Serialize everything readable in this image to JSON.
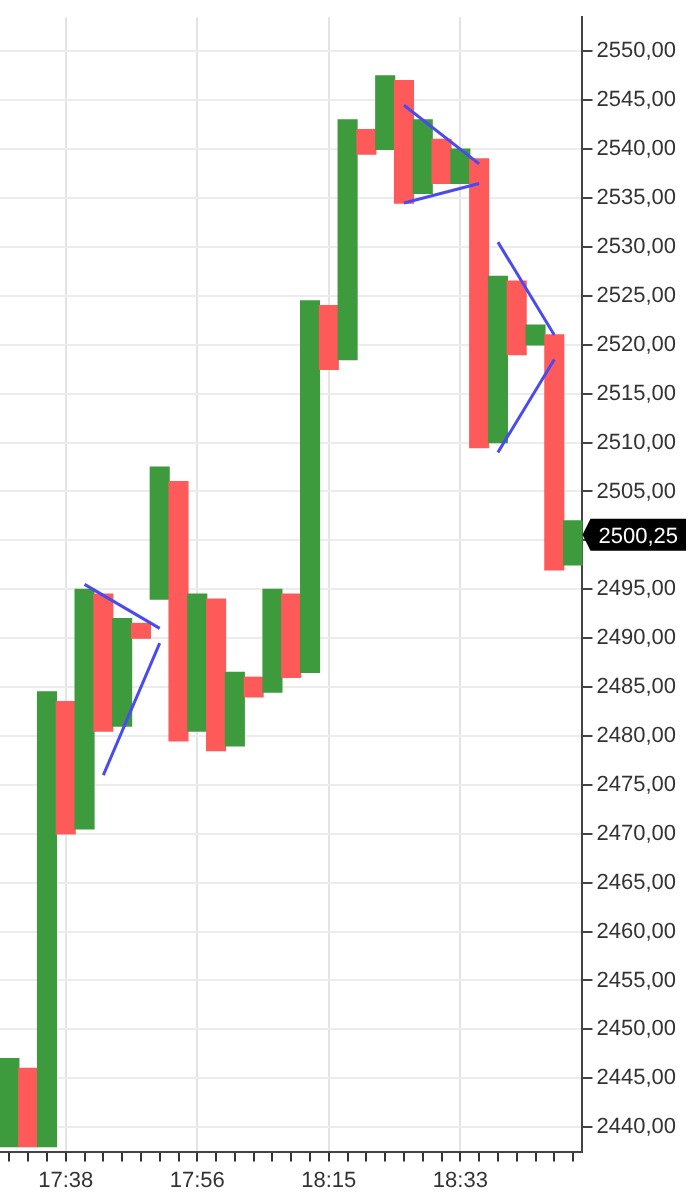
{
  "chart_data": {
    "type": "bar",
    "categories": [
      null,
      null,
      null,
      "17:38",
      null,
      null,
      null,
      null,
      null,
      null,
      "17:56",
      null,
      null,
      null,
      null,
      null,
      null,
      "18:15",
      null,
      null,
      null,
      null,
      null,
      null,
      "18:33",
      null,
      null,
      null,
      null,
      null,
      null
    ],
    "series": [
      {
        "base": [
          2438,
          2438,
          2438,
          2470,
          2470.5,
          2480.5,
          2481,
          2490,
          2494,
          2479.5,
          2480.5,
          2478.5,
          2479,
          2484,
          2484.5,
          2486,
          2486.5,
          2517.5,
          2518.5,
          2539.5,
          2540,
          2534.5,
          2535.5,
          2536.5,
          2536.5,
          2509.5,
          2510,
          2519,
          2520,
          2497,
          2497.5
        ],
        "values": [
          9,
          8,
          46.5,
          13.5,
          24.5,
          14,
          11,
          1.5,
          13.5,
          26.5,
          14,
          15.5,
          7.5,
          2,
          10.5,
          8.5,
          38,
          6.5,
          24.5,
          2.5,
          7.5,
          12.5,
          7.5,
          4.5,
          3.5,
          29.5,
          17,
          7.5,
          2,
          24,
          4.5
        ],
        "colors": [
          "#3d9a3d",
          "#ff5a5a",
          "#3d9a3d",
          "#ff5a5a",
          "#3d9a3d",
          "#ff5a5a",
          "#3d9a3d",
          "#ff5a5a",
          "#3d9a3d",
          "#ff5a5a",
          "#3d9a3d",
          "#ff5a5a",
          "#3d9a3d",
          "#ff5a5a",
          "#3d9a3d",
          "#ff5a5a",
          "#3d9a3d",
          "#ff5a5a",
          "#3d9a3d",
          "#ff5a5a",
          "#3d9a3d",
          "#ff5a5a",
          "#3d9a3d",
          "#ff5a5a",
          "#3d9a3d",
          "#ff5a5a",
          "#3d9a3d",
          "#ff5a5a",
          "#3d9a3d",
          "#ff5a5a",
          "#3d9a3d"
        ]
      },
      {
        "type": "line",
        "color": "#4a4af0",
        "values": [
          null,
          null,
          null,
          null,
          2495.5,
          null,
          null,
          null,
          2491,
          null,
          null,
          null,
          null,
          null,
          null,
          null,
          null,
          null,
          null,
          null,
          null,
          null,
          null,
          null,
          null,
          null,
          null,
          null,
          null,
          null,
          null
        ]
      },
      {
        "type": "line",
        "color": "#4a4af0",
        "values": [
          null,
          null,
          null,
          null,
          null,
          2476,
          null,
          null,
          2489.5,
          null,
          null,
          null,
          null,
          null,
          null,
          null,
          null,
          null,
          null,
          null,
          null,
          null,
          null,
          null,
          null,
          null,
          null,
          null,
          null,
          null,
          null
        ]
      },
      {
        "type": "line",
        "color": "#4a4af0",
        "values": [
          null,
          null,
          null,
          null,
          null,
          null,
          null,
          null,
          null,
          null,
          null,
          null,
          null,
          null,
          null,
          null,
          null,
          null,
          null,
          null,
          null,
          2544.5,
          null,
          null,
          null,
          2538.5,
          null,
          null,
          null,
          null,
          null
        ]
      },
      {
        "type": "line",
        "color": "#4a4af0",
        "values": [
          null,
          null,
          null,
          null,
          null,
          null,
          null,
          null,
          null,
          null,
          null,
          null,
          null,
          null,
          null,
          null,
          null,
          null,
          null,
          null,
          null,
          2534.5,
          null,
          null,
          null,
          2536.5,
          null,
          null,
          null,
          null,
          null
        ]
      },
      {
        "type": "line",
        "color": "#4a4af0",
        "values": [
          null,
          null,
          null,
          null,
          null,
          null,
          null,
          null,
          null,
          null,
          null,
          null,
          null,
          null,
          null,
          null,
          null,
          null,
          null,
          null,
          null,
          null,
          null,
          null,
          null,
          null,
          2530.5,
          null,
          null,
          2521,
          null
        ]
      },
      {
        "type": "line",
        "color": "#4a4af0",
        "values": [
          null,
          null,
          null,
          null,
          null,
          null,
          null,
          null,
          null,
          null,
          null,
          null,
          null,
          null,
          null,
          null,
          null,
          null,
          null,
          null,
          null,
          null,
          null,
          null,
          null,
          null,
          2509,
          null,
          null,
          2518.5,
          null
        ]
      }
    ],
    "ylim": [
      2437.5,
      2553.5
    ],
    "yticks": [
      {
        "value": 2440,
        "label": "2440,00"
      },
      {
        "value": 2445,
        "label": "2445,00"
      },
      {
        "value": 2450,
        "label": "2450,00"
      },
      {
        "value": 2455,
        "label": "2455,00"
      },
      {
        "value": 2460,
        "label": "2460,00"
      },
      {
        "value": 2465,
        "label": "2465,00"
      },
      {
        "value": 2470,
        "label": "2470,00"
      },
      {
        "value": 2475,
        "label": "2475,00"
      },
      {
        "value": 2480,
        "label": "2480,00"
      },
      {
        "value": 2485,
        "label": "2485,00"
      },
      {
        "value": 2490,
        "label": "2490,00"
      },
      {
        "value": 2495,
        "label": "2495,00"
      },
      {
        "value": 2500,
        "label": null
      },
      {
        "value": 2505,
        "label": "2505,00"
      },
      {
        "value": 2510,
        "label": "2510,00"
      },
      {
        "value": 2515,
        "label": "2515,00"
      },
      {
        "value": 2520,
        "label": "2520,00"
      },
      {
        "value": 2525,
        "label": "2525,00"
      },
      {
        "value": 2530,
        "label": "2530,00"
      },
      {
        "value": 2535,
        "label": "2535,00"
      },
      {
        "value": 2540,
        "label": "2540,00"
      },
      {
        "value": 2545,
        "label": "2545,00"
      },
      {
        "value": 2550,
        "label": "2550,00"
      }
    ],
    "grid": true,
    "legend": false,
    "annotations": [
      "2500,25"
    ]
  }
}
